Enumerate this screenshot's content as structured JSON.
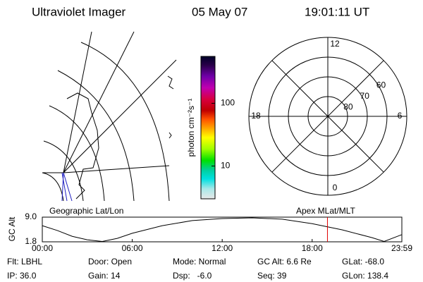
{
  "header": {
    "title": "Ultraviolet Imager",
    "date": "05 May 07",
    "time": "19:01:11 UT"
  },
  "map": {
    "label": "Geographic Lat/Lon"
  },
  "colorbar": {
    "label": "photon cm⁻²s⁻¹",
    "lim": [
      3,
      560
    ],
    "ticks": [
      10,
      100
    ],
    "log": true
  },
  "polar": {
    "label": "Apex MLat/MLT",
    "rlim": [
      90,
      50
    ],
    "lat_rings": [
      80,
      70,
      60
    ],
    "mlt_ticks": [
      12,
      18,
      6,
      0
    ]
  },
  "chart_data": {
    "type": "line",
    "ylabel": "GC Alt",
    "x": [
      0,
      1,
      2,
      3,
      4,
      5,
      6,
      8,
      10,
      12,
      14,
      16,
      18,
      20,
      22,
      22.8,
      23.983
    ],
    "values": [
      6.5,
      5.1,
      3.4,
      2.4,
      1.9,
      2.8,
      4.3,
      6.5,
      8.0,
      8.6,
      8.8,
      8.4,
      7.1,
      5.3,
      3.0,
      1.9,
      3.9
    ],
    "color": "#000000",
    "xlim": [
      0,
      23.983
    ],
    "ylim": [
      1.8,
      9.0
    ],
    "xticks": [
      {
        "value": 0,
        "label": "00:00"
      },
      {
        "value": 6,
        "label": "06:00"
      },
      {
        "value": 12,
        "label": "12:00"
      },
      {
        "value": 18,
        "label": "18:00"
      },
      {
        "value": 23.983,
        "label": "23:59"
      }
    ],
    "yticks": [
      1.8,
      {
        "value": 9,
        "label": "9.0"
      }
    ],
    "marker_x": 19.02,
    "marker_color": "#e00000"
  },
  "footer": {
    "rows": [
      [
        "Flt: LBHL",
        "Door: Open",
        "Mode: Normal",
        "GC Alt: 6.6 Re",
        "GLat: -68.0"
      ],
      [
        "IP: 36.0",
        "Gain: 14",
        "Dsp:   -6.0",
        "Seq: 39",
        "GLon: 138.4"
      ]
    ]
  }
}
